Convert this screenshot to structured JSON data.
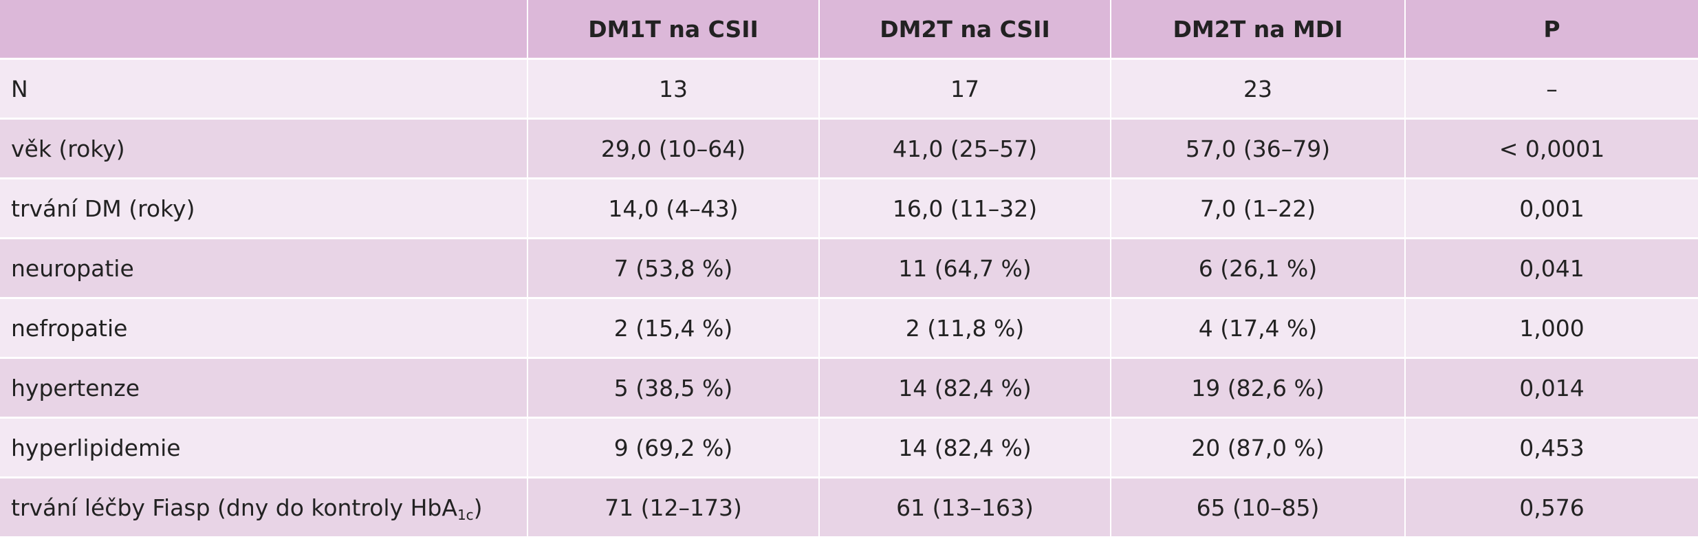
{
  "table": {
    "headers": [
      "",
      "DM1T na CSII",
      "DM2T na CSII",
      "DM2T na MDI",
      "P"
    ],
    "rows": [
      {
        "label": "N",
        "values": [
          "13",
          "17",
          "23",
          "–"
        ]
      },
      {
        "label": "věk (roky)",
        "values": [
          "29,0 (10–64)",
          "41,0 (25–57)",
          "57,0 (36–79)",
          "< 0,0001"
        ]
      },
      {
        "label": "trvání DM (roky)",
        "values": [
          "14,0 (4–43)",
          "16,0 (11–32)",
          "7,0 (1–22)",
          "0,001"
        ]
      },
      {
        "label": "neuropatie",
        "values": [
          "7 (53,8 %)",
          "11 (64,7 %)",
          "6 (26,1 %)",
          "0,041"
        ]
      },
      {
        "label": "nefropatie",
        "values": [
          "2 (15,4 %)",
          "2 (11,8 %)",
          "4 (17,4 %)",
          "1,000"
        ]
      },
      {
        "label": "hypertenze",
        "values": [
          "5 (38,5 %)",
          "14 (82,4 %)",
          "19 (82,6 %)",
          "0,014"
        ]
      },
      {
        "label": "hyperlipidemie",
        "values": [
          "9 (69,2 %)",
          "14 (82,4 %)",
          "20 (87,0 %)",
          "0,453"
        ]
      },
      {
        "label": "trvání léčby Fiasp (dny do kontroly HbA",
        "label_sub": "1c",
        "label_suffix": ")",
        "values": [
          "71 (12–173)",
          "61 (13–163)",
          "65 (10–85)",
          "0,576"
        ]
      }
    ]
  }
}
